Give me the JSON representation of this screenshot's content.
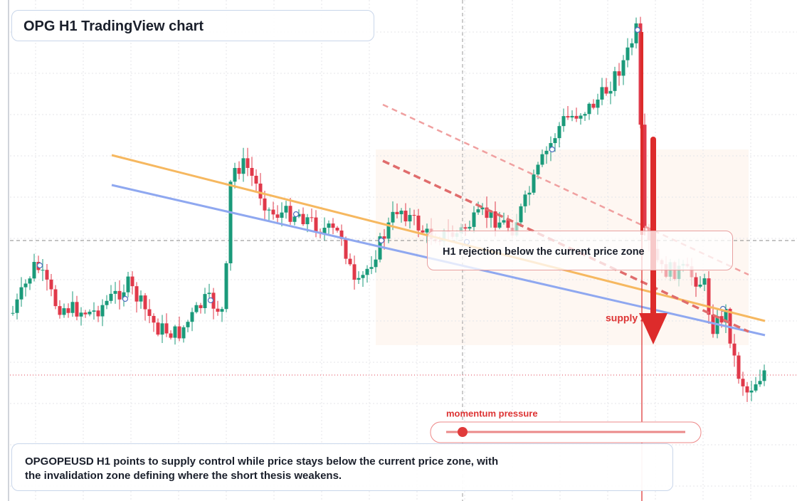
{
  "header": {
    "title": "OPG H1 TradingView chart"
  },
  "annotations": {
    "rejection": "H1 rejection below the current price zone",
    "supply": "supply zone",
    "momentum": "momentum pressure"
  },
  "footer": {
    "text": "OPGOPEUSD H1 points to supply control while price stays below the current price zone, with the invalidation zone defining where the short thesis weakens."
  }
}
